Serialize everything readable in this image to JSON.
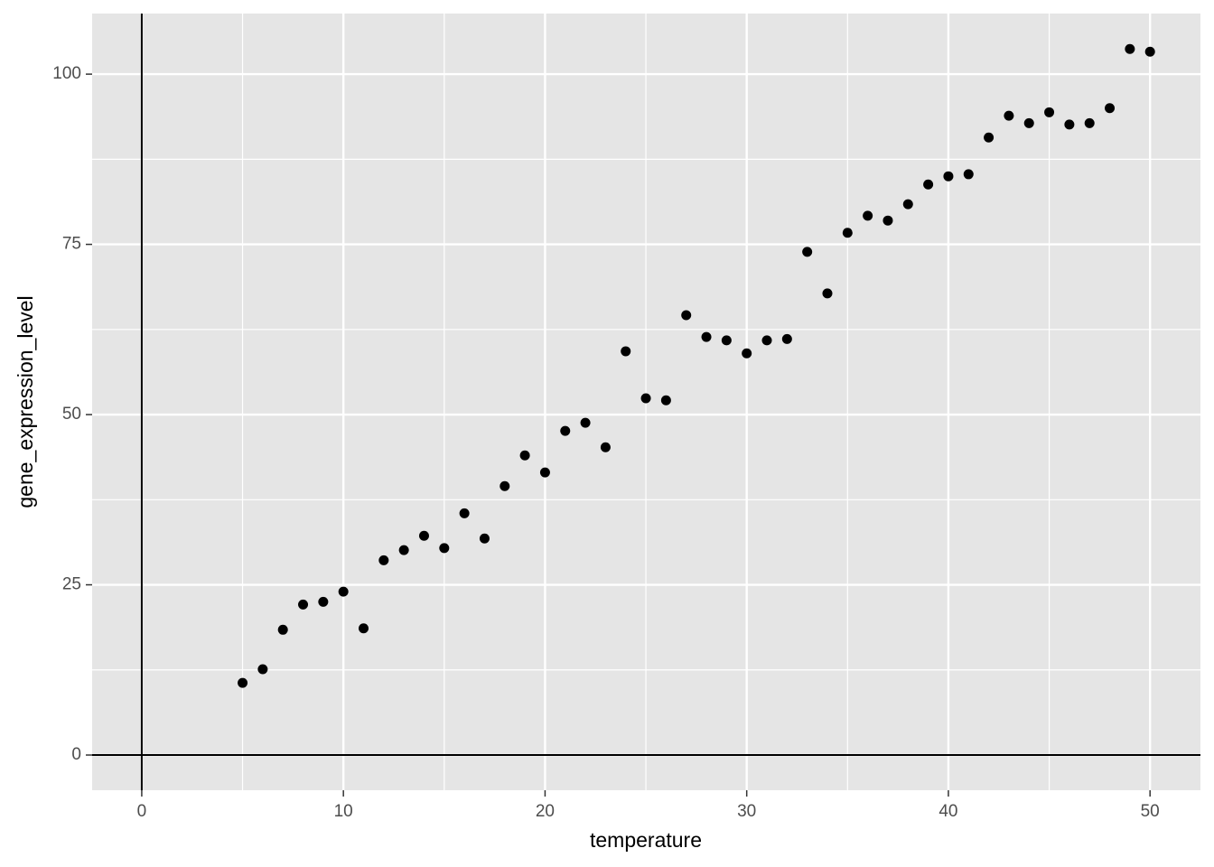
{
  "chart_data": {
    "type": "scatter",
    "x_label": "temperature",
    "y_label": "gene_expression_level",
    "x": [
      5,
      6,
      7,
      8,
      9,
      10,
      11,
      12,
      13,
      14,
      15,
      16,
      17,
      18,
      19,
      20,
      21,
      22,
      23,
      24,
      25,
      26,
      27,
      28,
      29,
      30,
      31,
      32,
      33,
      34,
      35,
      36,
      37,
      38,
      39,
      40,
      41,
      42,
      43,
      44,
      45,
      46,
      47,
      48,
      49,
      50
    ],
    "series": [
      {
        "color": "#000000",
        "values": [
          10.6,
          12.6,
          18.4,
          22.1,
          22.5,
          24.0,
          18.6,
          28.6,
          30.1,
          32.2,
          30.4,
          35.5,
          31.8,
          39.5,
          44.0,
          41.5,
          47.6,
          48.8,
          45.2,
          59.3,
          52.4,
          52.1,
          64.6,
          61.4,
          60.9,
          59.0,
          60.9,
          61.1,
          73.9,
          67.8,
          76.7,
          79.2,
          78.5,
          80.9,
          83.8,
          85.0,
          85.3,
          90.7,
          93.9,
          92.8,
          94.4,
          92.6,
          92.8,
          95.0,
          103.7,
          103.3
        ]
      }
    ],
    "xlim": [
      -2.46,
      52.5
    ],
    "ylim": [
      -5.17,
      108.9
    ],
    "xticks": [
      0,
      10,
      20,
      30,
      40,
      50
    ],
    "yticks": [
      0,
      25,
      50,
      75,
      100
    ],
    "grid": true,
    "hline": 0,
    "vline": 0
  }
}
